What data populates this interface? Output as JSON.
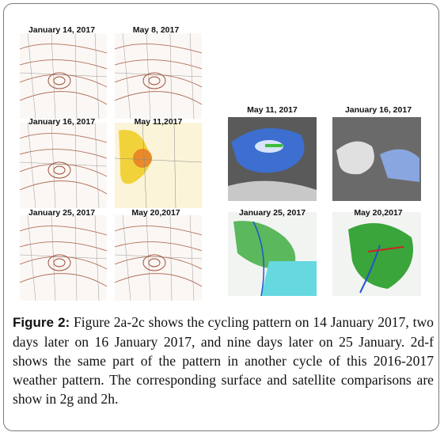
{
  "figure": {
    "panels": [
      {
        "label": "January 14, 2017"
      },
      {
        "label": "May 8, 2017"
      },
      {
        "label": "January 16, 2017"
      },
      {
        "label": "May 11,2017"
      },
      {
        "label": "January 25, 2017"
      },
      {
        "label": "May 20,2017"
      },
      {
        "label": "May 11, 2017"
      },
      {
        "label": "January 16, 2017"
      },
      {
        "label": "January 25, 2017"
      },
      {
        "label": "May 20,2017"
      }
    ],
    "caption": {
      "label": "Figure 2:",
      "text": "Figure 2a-2c shows the cycling pattern on 14 January 2017, two days later on 16 January 2017, and nine days later on 25 January. 2d-f shows the same part of the pattern in another cycle of this 2016-2017 weather pattern. The corresponding surface and satellite comparisons are show in 2g and 2h."
    }
  }
}
